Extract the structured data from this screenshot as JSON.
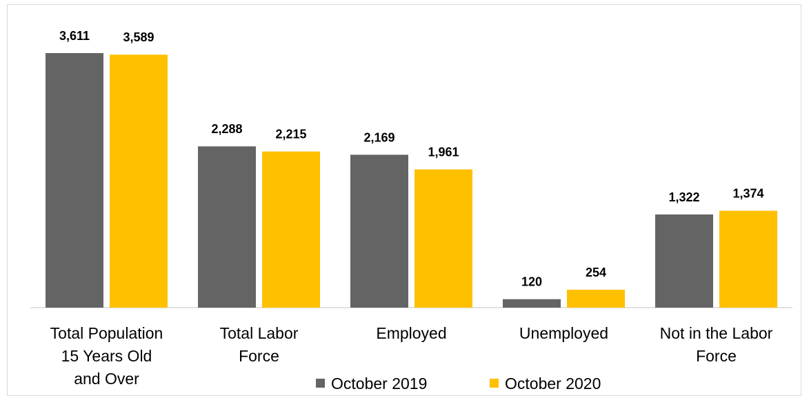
{
  "chart_data": {
    "type": "bar",
    "categories": [
      [
        "Total Population",
        "15 Years Old",
        "and Over"
      ],
      [
        "Total Labor",
        "Force"
      ],
      [
        "Employed"
      ],
      [
        "Unemployed"
      ],
      [
        "Not in the Labor",
        "Force"
      ]
    ],
    "series": [
      {
        "name": "October 2019",
        "color": "#646464",
        "values": [
          3611,
          2288,
          2169,
          120,
          1322
        ],
        "labels": [
          "3,611",
          "2,288",
          "2,169",
          "120",
          "1,322"
        ]
      },
      {
        "name": "October 2020",
        "color": "#FFC000",
        "values": [
          3589,
          2215,
          1961,
          254,
          1374
        ],
        "labels": [
          "3,589",
          "2,215",
          "1,961",
          "254",
          "1,374"
        ]
      }
    ],
    "ylim": [
      0,
      3611
    ],
    "grid": false,
    "legend": "bottom"
  }
}
